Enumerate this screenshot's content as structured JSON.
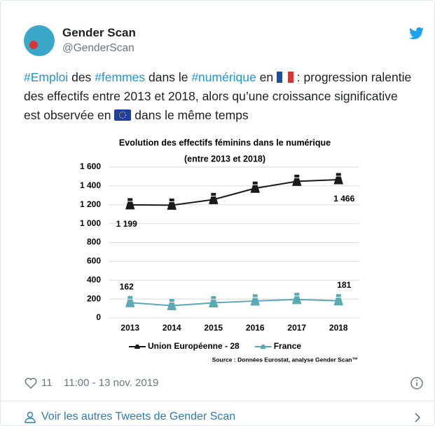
{
  "author": {
    "name": "Gender Scan",
    "handle": "@GenderScan"
  },
  "text": {
    "segments": [
      "#Emploi",
      " des ",
      "#femmes",
      " dans le ",
      "#numérique",
      " en ",
      " : progression ralentie des effectifs entre 2013 et 2018, alors qu’une croissance significative est observée en ",
      " dans le même temps"
    ]
  },
  "chart_data": {
    "type": "line",
    "title": "Evolution des effectifs féminins dans le numérique",
    "subtitle": "(entre 2013 et 2018)",
    "categories": [
      "2013",
      "2014",
      "2015",
      "2016",
      "2017",
      "2018"
    ],
    "series": [
      {
        "name": "Union Européenne - 28",
        "color": "#1a1a1a",
        "values": [
          1199,
          1195,
          1255,
          1375,
          1448,
          1466
        ],
        "value_labels": [
          "1 199",
          null,
          null,
          null,
          null,
          "1 466"
        ]
      },
      {
        "name": "France",
        "color": "#5aa9b5",
        "values": [
          162,
          130,
          160,
          180,
          195,
          181
        ],
        "value_labels": [
          "162",
          null,
          null,
          null,
          null,
          "181"
        ]
      }
    ],
    "ylim": [
      0,
      1600
    ],
    "yticks": [
      0,
      200,
      400,
      600,
      800,
      {
        "value": 1000,
        "label": "1 000"
      },
      {
        "value": 1200,
        "label": "1 200"
      },
      {
        "value": 1400,
        "label": "1 400"
      },
      {
        "value": 1600,
        "label": "1 600"
      }
    ],
    "grid": true,
    "legend": "bottom",
    "source": "Source : Données Eurostat, analyse Gender Scan™"
  },
  "footer": {
    "likes": "11",
    "time": "11:00 - 13 nov. 2019",
    "more_link": "Voir les autres Tweets de Gender Scan"
  }
}
